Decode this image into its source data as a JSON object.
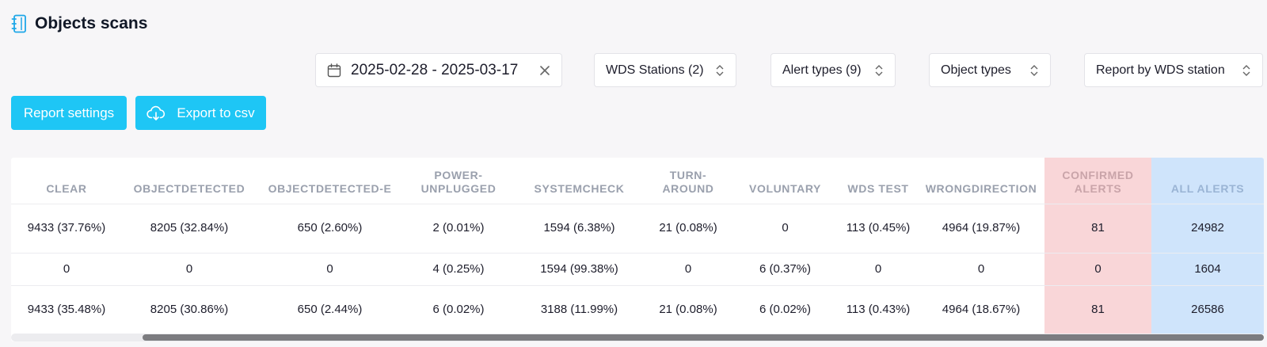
{
  "header": {
    "title": "Objects scans",
    "icon": "notebook-icon"
  },
  "filters": {
    "date_range": "2025-02-28 - 2025-03-17",
    "wds_stations": "WDS Stations (2)",
    "alert_types": "Alert types (9)",
    "object_types": "Object types",
    "report_by": "Report by WDS station"
  },
  "buttons": {
    "report_settings": "Report settings",
    "export_csv": "Export to csv"
  },
  "table": {
    "headers": {
      "clear": "CLEAR",
      "objectdetected": "OBJECTDETECTED",
      "objectdetected_e": "OBJECTDETECTED-E",
      "power_unplugged": "POWER-UNPLUGGED",
      "systemcheck": "SYSTEMCHECK",
      "turn_around": "TURN-AROUND",
      "voluntary": "VOLUNTARY",
      "wds_test": "WDS TEST",
      "wrongdirection": "WRONGDIRECTION",
      "confirmed_alerts": "CONFIRMED ALERTS",
      "all_alerts": "ALL ALERTS"
    },
    "rows": [
      {
        "clear": "9433 (37.76%)",
        "objectdetected": "8205 (32.84%)",
        "objectdetected_e": "650 (2.60%)",
        "power_unplugged": "2 (0.01%)",
        "systemcheck": "1594 (6.38%)",
        "turn_around": "21 (0.08%)",
        "voluntary": "0",
        "wds_test": "113 (0.45%)",
        "wrongdirection": "4964 (19.87%)",
        "confirmed_alerts": "81",
        "all_alerts": "24982"
      },
      {
        "clear": "0",
        "objectdetected": "0",
        "objectdetected_e": "0",
        "power_unplugged": "4 (0.25%)",
        "systemcheck": "1594 (99.38%)",
        "turn_around": "0",
        "voluntary": "6 (0.37%)",
        "wds_test": "0",
        "wrongdirection": "0",
        "confirmed_alerts": "0",
        "all_alerts": "1604"
      },
      {
        "clear": "9433 (35.48%)",
        "objectdetected": "8205 (30.86%)",
        "objectdetected_e": "650 (2.44%)",
        "power_unplugged": "6 (0.02%)",
        "systemcheck": "3188 (11.99%)",
        "turn_around": "21 (0.08%)",
        "voluntary": "6 (0.02%)",
        "wds_test": "113 (0.43%)",
        "wrongdirection": "4964 (18.67%)",
        "confirmed_alerts": "81",
        "all_alerts": "26586"
      }
    ]
  },
  "colors": {
    "accent": "#1ec6f5",
    "confirmed_bg": "#f9d6d8",
    "all_alerts_bg": "#cfe4fb"
  }
}
